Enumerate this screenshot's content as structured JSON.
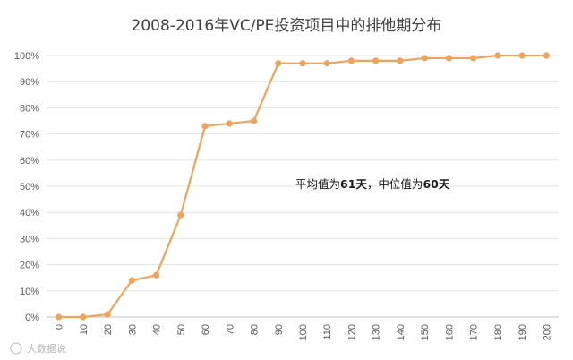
{
  "chart_data": {
    "type": "line",
    "title": "2008-2016年VC/PE投资项目中的排他期分布",
    "xlabel": "",
    "ylabel": "",
    "ylim": [
      0,
      100
    ],
    "yticks": [
      "0%",
      "10%",
      "20%",
      "30%",
      "40%",
      "50%",
      "60%",
      "70%",
      "80%",
      "90%",
      "100%"
    ],
    "categories": [
      "0",
      "10",
      "20",
      "30",
      "40",
      "50",
      "60",
      "70",
      "80",
      "90",
      "100",
      "110",
      "120",
      "130",
      "140",
      "150",
      "160",
      "170",
      "180",
      "190",
      "200"
    ],
    "series": [
      {
        "values": [
          0,
          0,
          1,
          14,
          16,
          39,
          73,
          74,
          75,
          97,
          97,
          97,
          98,
          98,
          98,
          99,
          99,
          99,
          100,
          100,
          100
        ]
      }
    ],
    "grid": true,
    "legend": "none",
    "colors": {
      "line": "#f0a35a",
      "grid": "#e3e3e3"
    },
    "annotation": {
      "p1": "平均值为",
      "v1": "61天",
      "p2": "，中位值为",
      "v2": "60天"
    }
  },
  "watermark": "大数据说"
}
